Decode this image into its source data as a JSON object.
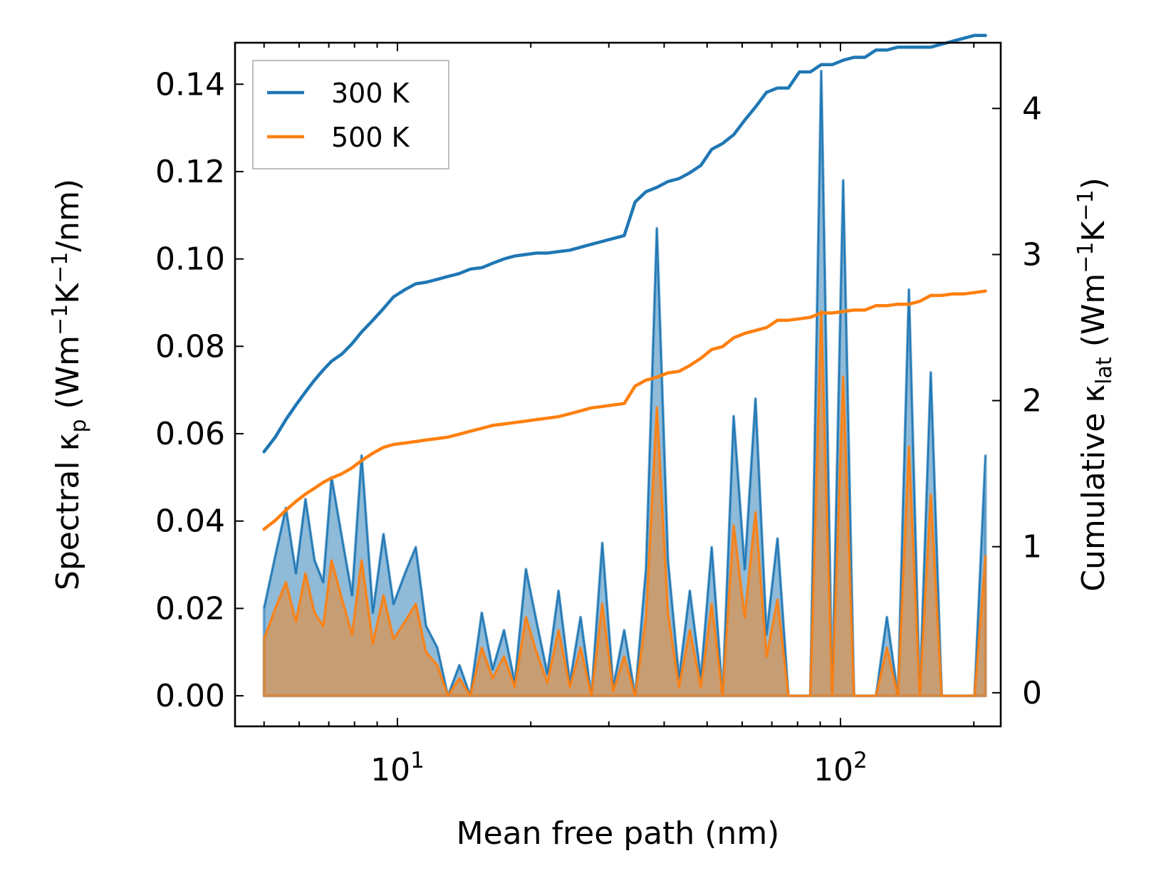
{
  "chart_data": {
    "type": "line",
    "xlabel": "Mean free path (nm)",
    "xscale": "log",
    "xlim": [
      4.3,
      230
    ],
    "x_ticks": [
      {
        "value": 10,
        "base": "10",
        "exp": "1"
      },
      {
        "value": 100,
        "base": "10",
        "exp": "2"
      }
    ],
    "y_left": {
      "label": {
        "pre": "Spectral κ",
        "sub": "p",
        "post": " (Wm",
        "sup1": "−1",
        "mid": "K",
        "sup2": "−1",
        "end": "/nm)"
      },
      "ylim": [
        -0.007,
        0.1495
      ],
      "ticks": [
        "0.00",
        "0.02",
        "0.04",
        "0.06",
        "0.08",
        "0.10",
        "0.12",
        "0.14"
      ]
    },
    "y_right": {
      "label": {
        "pre": "Cumulative κ",
        "sub": "lat",
        "post": " (Wm",
        "sup1": "−1",
        "mid": "K",
        "sup2": "−1",
        "end": ")"
      },
      "ylim": [
        -0.23,
        4.45
      ],
      "ticks": [
        "0",
        "1",
        "2",
        "3",
        "4"
      ]
    },
    "legend": {
      "position": "top-left",
      "entries": [
        "300 K",
        "500 K"
      ]
    },
    "x": [
      5.0,
      5.3,
      5.6,
      5.9,
      6.2,
      6.5,
      6.8,
      7.1,
      7.5,
      7.9,
      8.3,
      8.8,
      9.3,
      9.8,
      10.4,
      11.0,
      11.6,
      12.3,
      13.0,
      13.8,
      14.6,
      15.5,
      16.4,
      17.4,
      18.4,
      19.5,
      20.6,
      21.8,
      23.1,
      24.5,
      25.9,
      27.4,
      29.0,
      30.7,
      32.5,
      34.4,
      36.4,
      38.5,
      40.8,
      43.2,
      45.7,
      48.4,
      51.2,
      54.2,
      57.4,
      60.8,
      64.3,
      68.1,
      72.1,
      76.3,
      80.8,
      85.5,
      90.5,
      95.8,
      101.4,
      107.3,
      113.6,
      120.3,
      127.3,
      134.8,
      142.7,
      151.0,
      159.9,
      169.2,
      179.1,
      189.6,
      200.7,
      212.5
    ],
    "series": [
      {
        "name": "300 K",
        "color": "#1f77b4",
        "spectral": [
          0.02,
          0.032,
          0.043,
          0.028,
          0.045,
          0.031,
          0.026,
          0.05,
          0.036,
          0.023,
          0.055,
          0.019,
          0.037,
          0.021,
          0.028,
          0.034,
          0.016,
          0.011,
          0.0,
          0.007,
          0.0,
          0.019,
          0.006,
          0.015,
          0.003,
          0.029,
          0.017,
          0.005,
          0.024,
          0.003,
          0.018,
          0.0,
          0.035,
          0.002,
          0.015,
          0.0,
          0.029,
          0.107,
          0.031,
          0.004,
          0.024,
          0.004,
          0.034,
          0.0,
          0.064,
          0.029,
          0.068,
          0.014,
          0.036,
          0.0,
          0.0,
          0.0,
          0.143,
          0.0,
          0.118,
          0.0,
          0.0,
          0.0,
          0.018,
          0.0,
          0.093,
          0.0,
          0.074,
          0.0,
          0.0,
          0.0,
          0.0,
          0.055
        ],
        "cumulative": [
          1.65,
          1.75,
          1.87,
          1.97,
          2.06,
          2.14,
          2.21,
          2.27,
          2.32,
          2.39,
          2.47,
          2.55,
          2.63,
          2.71,
          2.76,
          2.8,
          2.81,
          2.83,
          2.85,
          2.87,
          2.9,
          2.91,
          2.94,
          2.97,
          2.99,
          3.0,
          3.01,
          3.01,
          3.02,
          3.03,
          3.05,
          3.07,
          3.09,
          3.11,
          3.13,
          3.36,
          3.43,
          3.46,
          3.5,
          3.52,
          3.56,
          3.61,
          3.72,
          3.76,
          3.82,
          3.92,
          4.01,
          4.11,
          4.14,
          4.14,
          4.25,
          4.25,
          4.3,
          4.3,
          4.33,
          4.35,
          4.35,
          4.4,
          4.4,
          4.42,
          4.42,
          4.42,
          4.42,
          4.44,
          4.46,
          4.48,
          4.5,
          4.5
        ]
      },
      {
        "name": "500 K",
        "color": "#ff7f0e",
        "spectral": [
          0.013,
          0.02,
          0.026,
          0.017,
          0.028,
          0.019,
          0.016,
          0.031,
          0.022,
          0.014,
          0.031,
          0.012,
          0.023,
          0.013,
          0.017,
          0.021,
          0.01,
          0.007,
          0.0,
          0.004,
          0.0,
          0.011,
          0.004,
          0.009,
          0.002,
          0.018,
          0.01,
          0.003,
          0.015,
          0.002,
          0.011,
          0.0,
          0.021,
          0.001,
          0.009,
          0.0,
          0.018,
          0.066,
          0.019,
          0.002,
          0.015,
          0.002,
          0.021,
          0.0,
          0.039,
          0.018,
          0.042,
          0.009,
          0.022,
          0.0,
          0.0,
          0.0,
          0.088,
          0.0,
          0.073,
          0.0,
          0.0,
          0.0,
          0.011,
          0.0,
          0.057,
          0.0,
          0.046,
          0.0,
          0.0,
          0.0,
          0.0,
          0.032
        ],
        "cumulative": [
          1.12,
          1.18,
          1.25,
          1.31,
          1.36,
          1.4,
          1.44,
          1.47,
          1.5,
          1.54,
          1.59,
          1.64,
          1.68,
          1.7,
          1.71,
          1.72,
          1.73,
          1.74,
          1.75,
          1.77,
          1.79,
          1.81,
          1.83,
          1.84,
          1.85,
          1.86,
          1.87,
          1.88,
          1.89,
          1.91,
          1.93,
          1.95,
          1.96,
          1.97,
          1.98,
          2.1,
          2.14,
          2.16,
          2.19,
          2.2,
          2.24,
          2.29,
          2.35,
          2.37,
          2.43,
          2.46,
          2.48,
          2.5,
          2.55,
          2.55,
          2.56,
          2.57,
          2.6,
          2.6,
          2.61,
          2.62,
          2.62,
          2.65,
          2.65,
          2.66,
          2.66,
          2.68,
          2.72,
          2.72,
          2.73,
          2.73,
          2.74,
          2.75
        ]
      }
    ]
  }
}
